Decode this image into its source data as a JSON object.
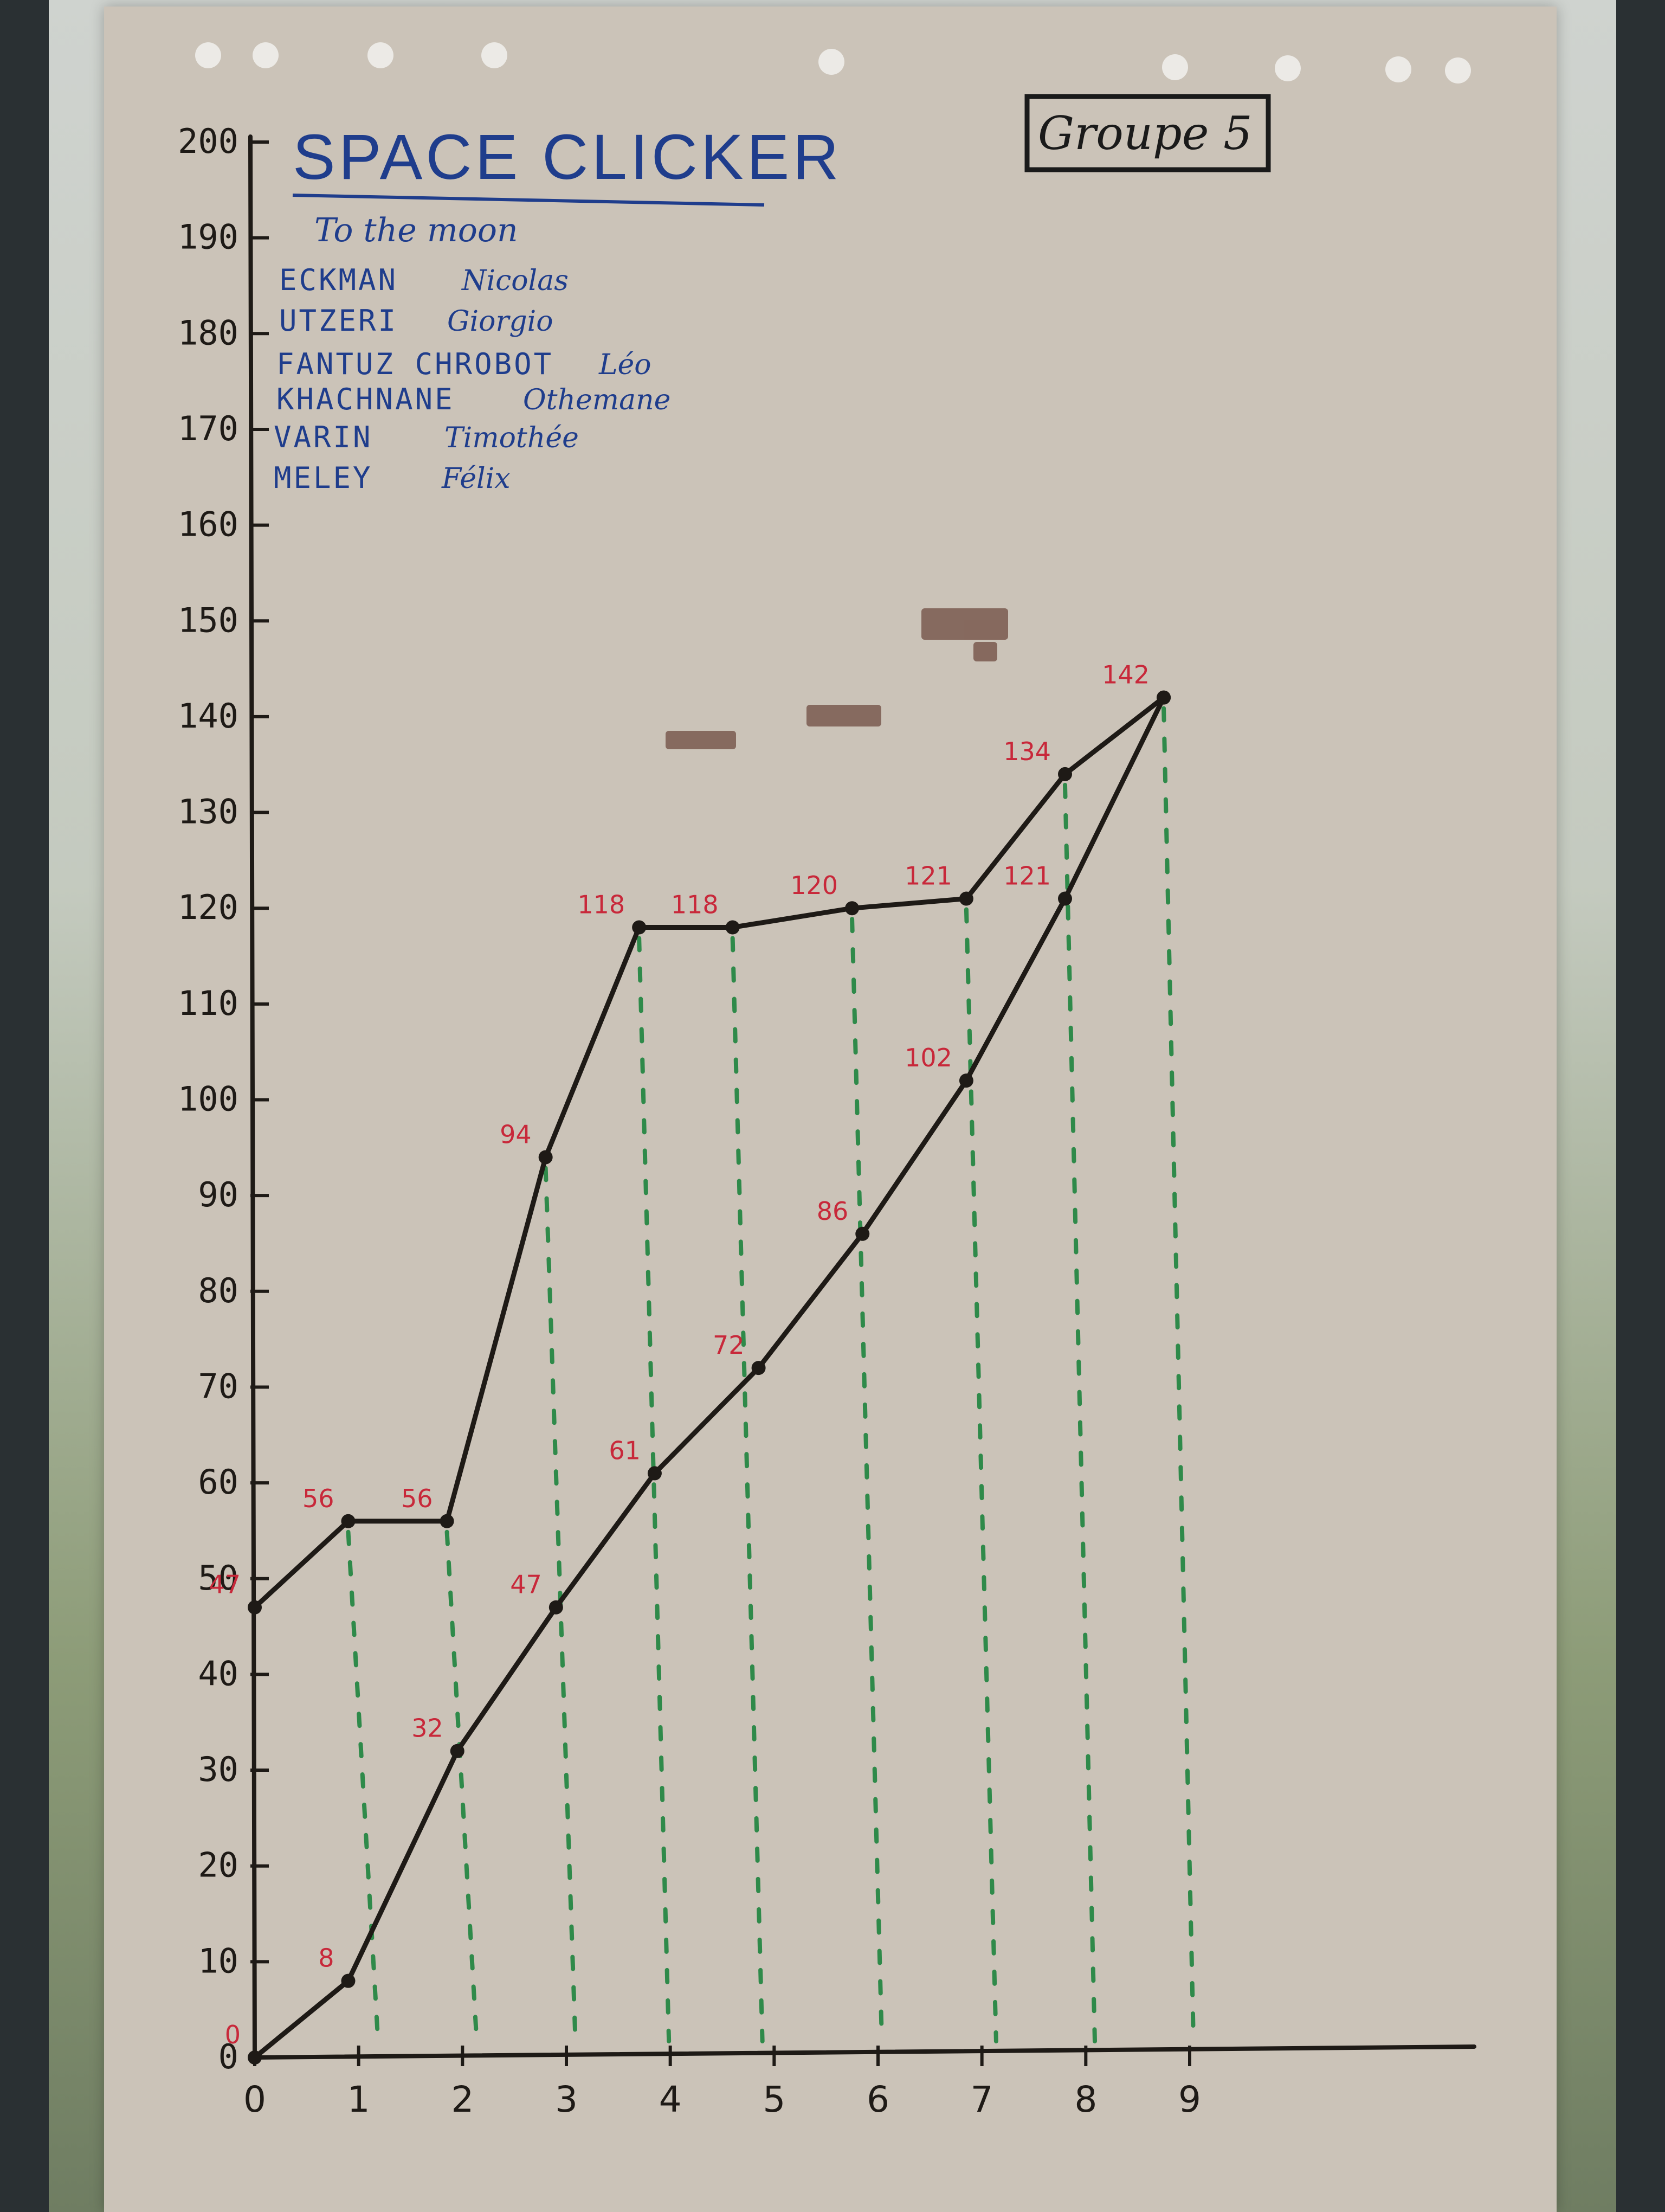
{
  "poster": {
    "title": "SPACE CLICKER",
    "subtitle": "To the moon",
    "group": "Groupe 5",
    "members": [
      {
        "last": "ECKMAN",
        "first": "Nicolas"
      },
      {
        "last": "UTZERI",
        "first": "Giorgio"
      },
      {
        "last": "FANTUZ CHROBOT",
        "first": "Léo"
      },
      {
        "last": "KHACHNANE",
        "first": "Othemane"
      },
      {
        "last": "VARIN",
        "first": "Timothée"
      },
      {
        "last": "MELEY",
        "first": "Félix"
      }
    ]
  },
  "chart_data": {
    "type": "line",
    "title": "SPACE CLICKER",
    "xlabel": "",
    "ylabel": "",
    "x": [
      0,
      1,
      2,
      3,
      4,
      5,
      6,
      7,
      8,
      9
    ],
    "x_tick_labels": [
      "0",
      "1",
      "2",
      "3",
      "4",
      "5",
      "6",
      "7",
      "8",
      "9"
    ],
    "ylim": [
      0,
      200
    ],
    "y_ticks": [
      0,
      10,
      20,
      30,
      40,
      50,
      60,
      70,
      80,
      90,
      100,
      110,
      120,
      130,
      140,
      150,
      160,
      170,
      180,
      190,
      200
    ],
    "y_tick_labels": [
      "0",
      "10",
      "20",
      "30",
      "40",
      "50",
      "60",
      "70",
      "80",
      "90",
      "100",
      "110",
      "120",
      "130",
      "140",
      "150",
      "160",
      "170",
      "180",
      "190",
      "200"
    ],
    "series": [
      {
        "label_color": "#c8283a",
        "line_color": "#1e1a16",
        "x": [
          0,
          0.9,
          1.85,
          2.8,
          3.7,
          4.6,
          5.75,
          6.85,
          7.8,
          8.75
        ],
        "y": [
          47,
          56,
          56,
          94,
          118,
          118,
          120,
          121,
          134,
          142
        ],
        "labels": [
          "47",
          "56",
          "56",
          "94",
          "118",
          "118",
          "120",
          "121",
          "134",
          "142"
        ]
      },
      {
        "label_color": "#c8283a",
        "line_color": "#1e1a16",
        "x": [
          0,
          0.9,
          1.95,
          2.9,
          3.85,
          4.85,
          5.85,
          6.85,
          7.8,
          8.75
        ],
        "y": [
          0,
          8,
          32,
          47,
          61,
          72,
          86,
          102,
          121,
          142
        ],
        "labels": [
          "0",
          "8",
          "32",
          "47",
          "61",
          "72",
          "86",
          "102",
          "121",
          ""
        ]
      }
    ],
    "guide_lines": {
      "style": "dashed",
      "color": "#2f8a4a"
    },
    "grid": false,
    "legend": "none"
  }
}
